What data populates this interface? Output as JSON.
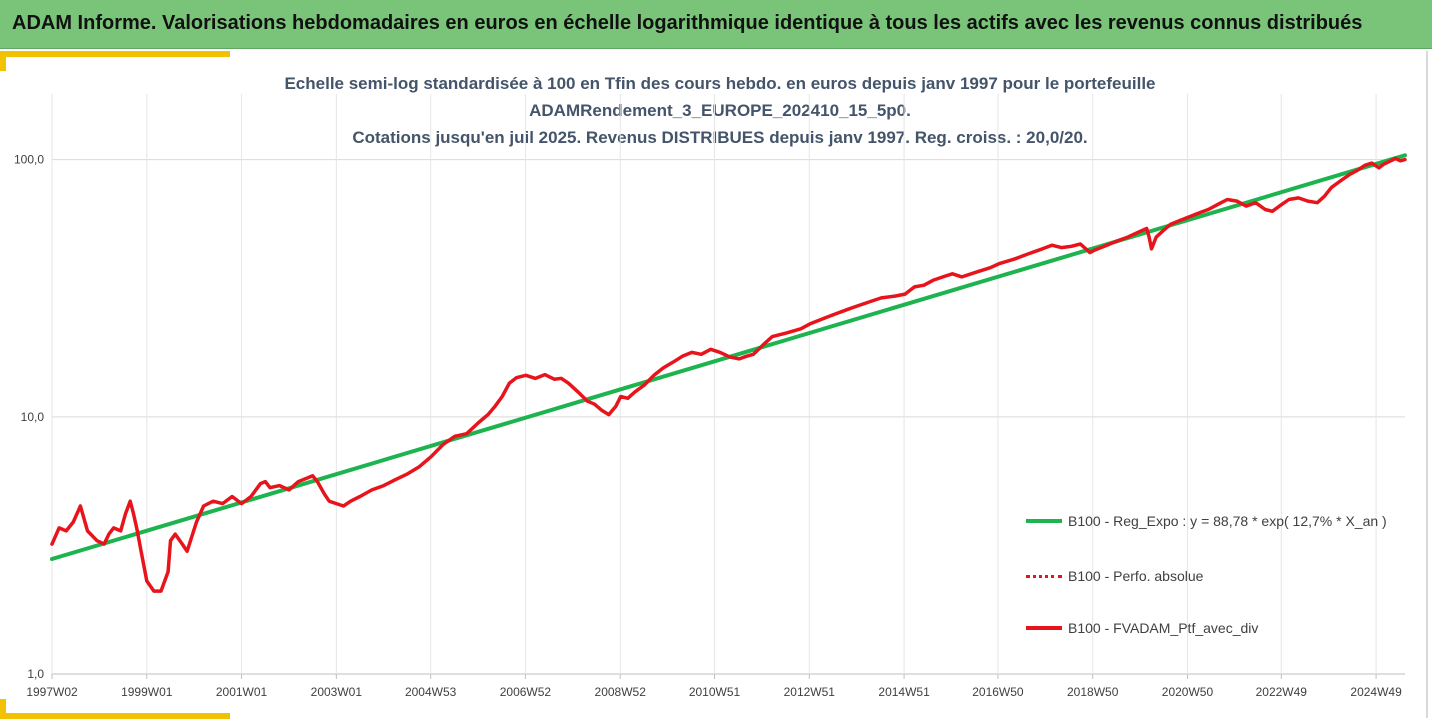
{
  "header": {
    "title": "ADAM Informe. Valorisations hebdomadaires en euros en échelle logarithmique identique à tous les actifs avec les revenus connus distribués"
  },
  "colors": {
    "header_bg": "#7ac47a",
    "accent": "#f2c200",
    "title_text": "#44546a",
    "regression": "#1db34e",
    "portfolio": "#e8141c"
  },
  "chart_data": {
    "type": "line",
    "title_lines": [
      "Echelle semi-log standardisée à 100 en Tfin des cours hebdo.  en euros depuis janv 1997 pour le portefeuille",
      "ADAMRendement_3_EUROPE_202410_15_5p0.",
      "Cotations  jusqu'en juil 2025. Revenus DISTRIBUES depuis janv 1997. Reg. croiss. : 20,0/20."
    ],
    "y_scale": "log",
    "ylim": [
      1,
      180
    ],
    "y_ticks": [
      {
        "value": 1,
        "label": "1,0"
      },
      {
        "value": 10,
        "label": "10,0"
      },
      {
        "value": 100,
        "label": "100,0"
      }
    ],
    "xlim": [
      1997.0,
      2025.55
    ],
    "x_ticks": [
      {
        "pos": 1997.0,
        "label": "1997W02"
      },
      {
        "pos": 1999.0,
        "label": "1999W01"
      },
      {
        "pos": 2001.0,
        "label": "2001W01"
      },
      {
        "pos": 2003.0,
        "label": "2003W01"
      },
      {
        "pos": 2004.99,
        "label": "2004W53"
      },
      {
        "pos": 2006.99,
        "label": "2006W52"
      },
      {
        "pos": 2008.99,
        "label": "2008W52"
      },
      {
        "pos": 2010.98,
        "label": "2010W51"
      },
      {
        "pos": 2012.98,
        "label": "2012W51"
      },
      {
        "pos": 2014.98,
        "label": "2014W51"
      },
      {
        "pos": 2016.96,
        "label": "2016W50"
      },
      {
        "pos": 2018.96,
        "label": "2018W50"
      },
      {
        "pos": 2020.96,
        "label": "2020W50"
      },
      {
        "pos": 2022.94,
        "label": "2022W49"
      },
      {
        "pos": 2024.94,
        "label": "2024W49"
      }
    ],
    "grid": true,
    "legend_position": "bottom-right",
    "series": [
      {
        "name": "B100 - Reg_Expo : y = 88,78 * exp( 12,7% *  X_an )",
        "style": "solid",
        "color": "#1db34e",
        "x": [
          1997.0,
          2025.55
        ],
        "y": [
          2.8,
          104
        ]
      },
      {
        "name": "B100 - Perfo. absolue",
        "style": "dotted",
        "color": "#e8141c",
        "x": [],
        "y": []
      },
      {
        "name": "B100 - FVADAM_Ptf_avec_div",
        "style": "solid",
        "color": "#e8141c",
        "x": [
          1997.0,
          1997.15,
          1997.3,
          1997.45,
          1997.6,
          1997.75,
          1997.95,
          1998.1,
          1998.2,
          1998.3,
          1998.45,
          1998.55,
          1998.65,
          1998.72,
          1998.8,
          1998.88,
          1999.0,
          1999.15,
          1999.3,
          1999.45,
          1999.5,
          1999.6,
          1999.75,
          1999.85,
          2000.05,
          2000.2,
          2000.4,
          2000.6,
          2000.8,
          2001.0,
          2001.2,
          2001.4,
          2001.5,
          2001.6,
          2001.8,
          2002.0,
          2002.2,
          2002.4,
          2002.5,
          2002.6,
          2002.75,
          2002.85,
          2003.0,
          2003.15,
          2003.3,
          2003.5,
          2003.75,
          2004.0,
          2004.25,
          2004.5,
          2004.75,
          2005.0,
          2005.25,
          2005.5,
          2005.75,
          2006.0,
          2006.2,
          2006.35,
          2006.5,
          2006.65,
          2006.8,
          2007.0,
          2007.2,
          2007.4,
          2007.5,
          2007.6,
          2007.75,
          2007.9,
          2008.1,
          2008.3,
          2008.45,
          2008.6,
          2008.75,
          2008.9,
          2009.0,
          2009.15,
          2009.3,
          2009.5,
          2009.7,
          2009.9,
          2010.1,
          2010.3,
          2010.5,
          2010.7,
          2010.9,
          2011.1,
          2011.3,
          2011.5,
          2011.65,
          2011.8,
          2012.0,
          2012.2,
          2012.5,
          2012.8,
          2013.0,
          2013.3,
          2013.5,
          2013.8,
          2014.0,
          2014.3,
          2014.5,
          2014.8,
          2015.0,
          2015.2,
          2015.4,
          2015.6,
          2015.8,
          2016.0,
          2016.2,
          2016.5,
          2016.8,
          2017.0,
          2017.3,
          2017.6,
          2017.9,
          2018.1,
          2018.3,
          2018.5,
          2018.7,
          2018.9,
          2019.0,
          2019.2,
          2019.5,
          2019.7,
          2019.9,
          2020.1,
          2020.15,
          2020.2,
          2020.3,
          2020.45,
          2020.6,
          2020.8,
          2021.0,
          2021.2,
          2021.4,
          2021.6,
          2021.8,
          2022.0,
          2022.2,
          2022.4,
          2022.6,
          2022.75,
          2022.9,
          2023.1,
          2023.3,
          2023.5,
          2023.7,
          2023.85,
          2024.0,
          2024.2,
          2024.4,
          2024.55,
          2024.7,
          2024.85,
          2025.0,
          2025.1,
          2025.2,
          2025.35,
          2025.45,
          2025.55
        ],
        "y": [
          3.2,
          3.7,
          3.6,
          3.9,
          4.5,
          3.6,
          3.3,
          3.2,
          3.5,
          3.7,
          3.6,
          4.2,
          4.7,
          4.2,
          3.6,
          3.0,
          2.3,
          2.1,
          2.1,
          2.5,
          3.3,
          3.5,
          3.2,
          3.0,
          3.9,
          4.5,
          4.7,
          4.6,
          4.9,
          4.6,
          4.9,
          5.5,
          5.6,
          5.3,
          5.4,
          5.2,
          5.6,
          5.8,
          5.9,
          5.6,
          5.0,
          4.7,
          4.6,
          4.5,
          4.7,
          4.9,
          5.2,
          5.4,
          5.7,
          6.0,
          6.4,
          7.0,
          7.8,
          8.4,
          8.6,
          9.5,
          10.2,
          11.0,
          12.0,
          13.5,
          14.2,
          14.5,
          14.1,
          14.6,
          14.3,
          14.0,
          14.1,
          13.5,
          12.5,
          11.5,
          11.2,
          10.6,
          10.2,
          11.0,
          12.0,
          11.8,
          12.5,
          13.3,
          14.5,
          15.5,
          16.3,
          17.2,
          17.8,
          17.5,
          18.3,
          17.8,
          17.1,
          16.8,
          17.2,
          17.5,
          19.0,
          20.5,
          21.2,
          22.0,
          23.0,
          24.2,
          25.0,
          26.2,
          27.0,
          28.2,
          29.0,
          29.5,
          30.0,
          32.0,
          32.5,
          34.0,
          35.0,
          36.0,
          35.0,
          36.5,
          38.0,
          39.5,
          41.0,
          43.0,
          45.0,
          46.5,
          45.5,
          46.0,
          47.0,
          43.5,
          44.5,
          46.0,
          48.5,
          50.0,
          52.0,
          54.0,
          50.0,
          45.0,
          50.0,
          53.0,
          56.0,
          58.0,
          60.0,
          62.0,
          64.0,
          67.0,
          70.0,
          69.0,
          66.0,
          68.0,
          64.0,
          63.0,
          66.0,
          70.0,
          71.0,
          69.0,
          68.0,
          72.0,
          78.0,
          83.0,
          88.0,
          91.0,
          95.0,
          97.0,
          93.0,
          96.0,
          98.0,
          101.0,
          99.0,
          100.0
        ]
      }
    ]
  }
}
